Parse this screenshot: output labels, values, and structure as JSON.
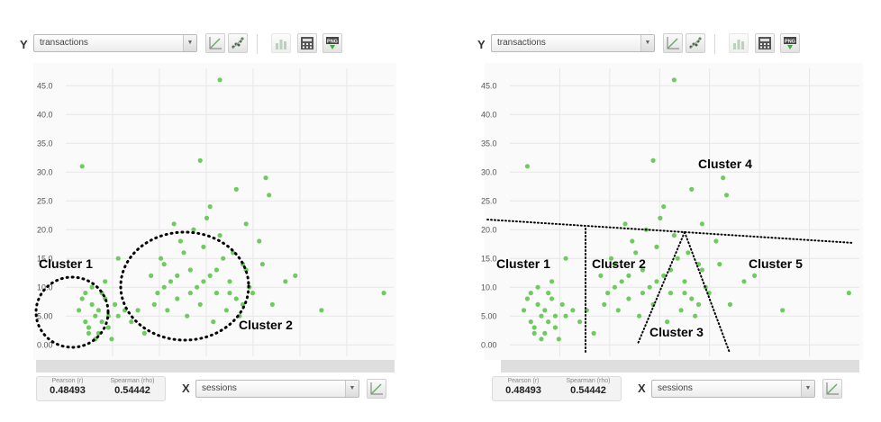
{
  "panels": [
    {
      "y_select": "transactions",
      "x_select": "sessions",
      "x_letter": "X",
      "y_letter": "Y",
      "pearson_label": "Pearson (r)",
      "pearson_value": "0.48493",
      "spearman_label": "Spearman (rho)",
      "spearman_value": "0.54442",
      "annotations": [
        "Cluster 1",
        "Cluster 2"
      ]
    },
    {
      "y_select": "transactions",
      "x_select": "sessions",
      "x_letter": "X",
      "y_letter": "Y",
      "pearson_label": "Pearson (r)",
      "pearson_value": "0.48493",
      "spearman_label": "Spearman (rho)",
      "spearman_value": "0.54442",
      "annotations": [
        "Cluster 1",
        "Cluster 2",
        "Cluster 3",
        "Cluster 4",
        "Cluster 5"
      ]
    }
  ],
  "icons": {
    "y_tools": [
      "line-chart-icon",
      "scatter-icon",
      "bar-chart-icon",
      "calculator-icon",
      "png-export-icon"
    ],
    "x_tools": [
      "line-chart-icon"
    ],
    "png_text": "PNG"
  },
  "colors": {
    "points": "#6fcb5f",
    "grid": "#e6e6e6",
    "annotation": "#000000"
  },
  "chart_data": [
    {
      "type": "scatter",
      "title": "",
      "xlabel": "",
      "ylabel": "",
      "ylim": [
        -2,
        48
      ],
      "xlim": [
        0,
        10
      ],
      "yticks": [
        "0.00",
        "5.00",
        "10.0",
        "15.0",
        "20.0",
        "25.0",
        "30.0",
        "35.0",
        "40.0",
        "45.0"
      ],
      "grid": true,
      "series": [
        {
          "points": [
            [
              0.5,
              31
            ],
            [
              0.4,
              6
            ],
            [
              0.5,
              8
            ],
            [
              0.6,
              4
            ],
            [
              0.7,
              2
            ],
            [
              0.8,
              7
            ],
            [
              0.9,
              5
            ],
            [
              0.6,
              9
            ],
            [
              0.7,
              3
            ],
            [
              0.9,
              1
            ],
            [
              1.0,
              6
            ],
            [
              1.1,
              4
            ],
            [
              1.2,
              8
            ],
            [
              1.3,
              5
            ],
            [
              1.0,
              2
            ],
            [
              1.1,
              9
            ],
            [
              1.3,
              3
            ],
            [
              1.5,
              7
            ],
            [
              1.6,
              5
            ],
            [
              1.8,
              6
            ],
            [
              2.0,
              4
            ],
            [
              2.2,
              6
            ],
            [
              1.4,
              1
            ],
            [
              0.8,
              10
            ],
            [
              1.2,
              11
            ],
            [
              1.6,
              15
            ],
            [
              2.6,
              12
            ],
            [
              2.8,
              9
            ],
            [
              3.0,
              14
            ],
            [
              3.2,
              11
            ],
            [
              3.4,
              8
            ],
            [
              3.6,
              16
            ],
            [
              3.8,
              13
            ],
            [
              4.0,
              10
            ],
            [
              4.2,
              17
            ],
            [
              4.4,
              12
            ],
            [
              4.6,
              9
            ],
            [
              4.8,
              15
            ],
            [
              5.0,
              11
            ],
            [
              5.2,
              8
            ],
            [
              5.4,
              14
            ],
            [
              5.6,
              10
            ],
            [
              2.7,
              7
            ],
            [
              3.1,
              6
            ],
            [
              3.5,
              18
            ],
            [
              3.9,
              20
            ],
            [
              4.3,
              22
            ],
            [
              4.7,
              19
            ],
            [
              5.1,
              16
            ],
            [
              5.5,
              13
            ],
            [
              2.9,
              15
            ],
            [
              3.3,
              21
            ],
            [
              3.7,
              5
            ],
            [
              4.1,
              7
            ],
            [
              4.5,
              4
            ],
            [
              4.9,
              6
            ],
            [
              5.3,
              5
            ],
            [
              5.7,
              9
            ],
            [
              3.0,
              10
            ],
            [
              3.4,
              12
            ],
            [
              3.8,
              9
            ],
            [
              4.2,
              11
            ],
            [
              4.6,
              13
            ],
            [
              5.0,
              9
            ],
            [
              5.4,
              7
            ],
            [
              4.4,
              24
            ],
            [
              4.1,
              32
            ],
            [
              4.7,
              46
            ],
            [
              5.2,
              27
            ],
            [
              5.5,
              21
            ],
            [
              6.1,
              29
            ],
            [
              6.2,
              26
            ],
            [
              6.0,
              14
            ],
            [
              6.7,
              11
            ],
            [
              7.0,
              12
            ],
            [
              7.8,
              6
            ],
            [
              9.7,
              9
            ],
            [
              5.9,
              18
            ],
            [
              6.3,
              7
            ],
            [
              2.4,
              2
            ]
          ]
        }
      ]
    },
    {
      "type": "scatter",
      "title": "",
      "xlabel": "",
      "ylabel": "",
      "ylim": [
        -2,
        48
      ],
      "xlim": [
        0,
        10
      ],
      "yticks": [
        "0.00",
        "5.00",
        "10.0",
        "15.0",
        "20.0",
        "25.0",
        "30.0",
        "35.0",
        "40.0",
        "45.0"
      ],
      "grid": true,
      "series": [
        {
          "points": [
            [
              0.5,
              31
            ],
            [
              0.4,
              6
            ],
            [
              0.5,
              8
            ],
            [
              0.6,
              4
            ],
            [
              0.7,
              2
            ],
            [
              0.8,
              7
            ],
            [
              0.9,
              5
            ],
            [
              0.6,
              9
            ],
            [
              0.7,
              3
            ],
            [
              0.9,
              1
            ],
            [
              1.0,
              6
            ],
            [
              1.1,
              4
            ],
            [
              1.2,
              8
            ],
            [
              1.3,
              5
            ],
            [
              1.0,
              2
            ],
            [
              1.1,
              9
            ],
            [
              1.3,
              3
            ],
            [
              1.5,
              7
            ],
            [
              1.6,
              5
            ],
            [
              1.8,
              6
            ],
            [
              2.0,
              4
            ],
            [
              2.2,
              6
            ],
            [
              1.4,
              1
            ],
            [
              0.8,
              10
            ],
            [
              1.2,
              11
            ],
            [
              1.6,
              15
            ],
            [
              2.6,
              12
            ],
            [
              2.8,
              9
            ],
            [
              3.0,
              14
            ],
            [
              3.2,
              11
            ],
            [
              3.4,
              8
            ],
            [
              3.6,
              16
            ],
            [
              3.8,
              13
            ],
            [
              4.0,
              10
            ],
            [
              4.2,
              17
            ],
            [
              4.4,
              12
            ],
            [
              4.6,
              9
            ],
            [
              4.8,
              15
            ],
            [
              5.0,
              11
            ],
            [
              5.2,
              8
            ],
            [
              5.4,
              14
            ],
            [
              5.6,
              10
            ],
            [
              2.7,
              7
            ],
            [
              3.1,
              6
            ],
            [
              3.5,
              18
            ],
            [
              3.9,
              20
            ],
            [
              4.3,
              22
            ],
            [
              4.7,
              19
            ],
            [
              5.1,
              16
            ],
            [
              5.5,
              13
            ],
            [
              2.9,
              15
            ],
            [
              3.3,
              21
            ],
            [
              3.7,
              5
            ],
            [
              4.1,
              7
            ],
            [
              4.5,
              4
            ],
            [
              4.9,
              6
            ],
            [
              5.3,
              5
            ],
            [
              5.7,
              9
            ],
            [
              3.0,
              10
            ],
            [
              3.4,
              12
            ],
            [
              3.8,
              9
            ],
            [
              4.2,
              11
            ],
            [
              4.6,
              13
            ],
            [
              5.0,
              9
            ],
            [
              5.4,
              7
            ],
            [
              4.4,
              24
            ],
            [
              4.1,
              32
            ],
            [
              4.7,
              46
            ],
            [
              5.2,
              27
            ],
            [
              5.5,
              21
            ],
            [
              6.1,
              29
            ],
            [
              6.2,
              26
            ],
            [
              6.0,
              14
            ],
            [
              6.7,
              11
            ],
            [
              7.0,
              12
            ],
            [
              7.8,
              6
            ],
            [
              9.7,
              9
            ],
            [
              5.9,
              18
            ],
            [
              6.3,
              7
            ],
            [
              2.4,
              2
            ]
          ]
        }
      ]
    }
  ]
}
